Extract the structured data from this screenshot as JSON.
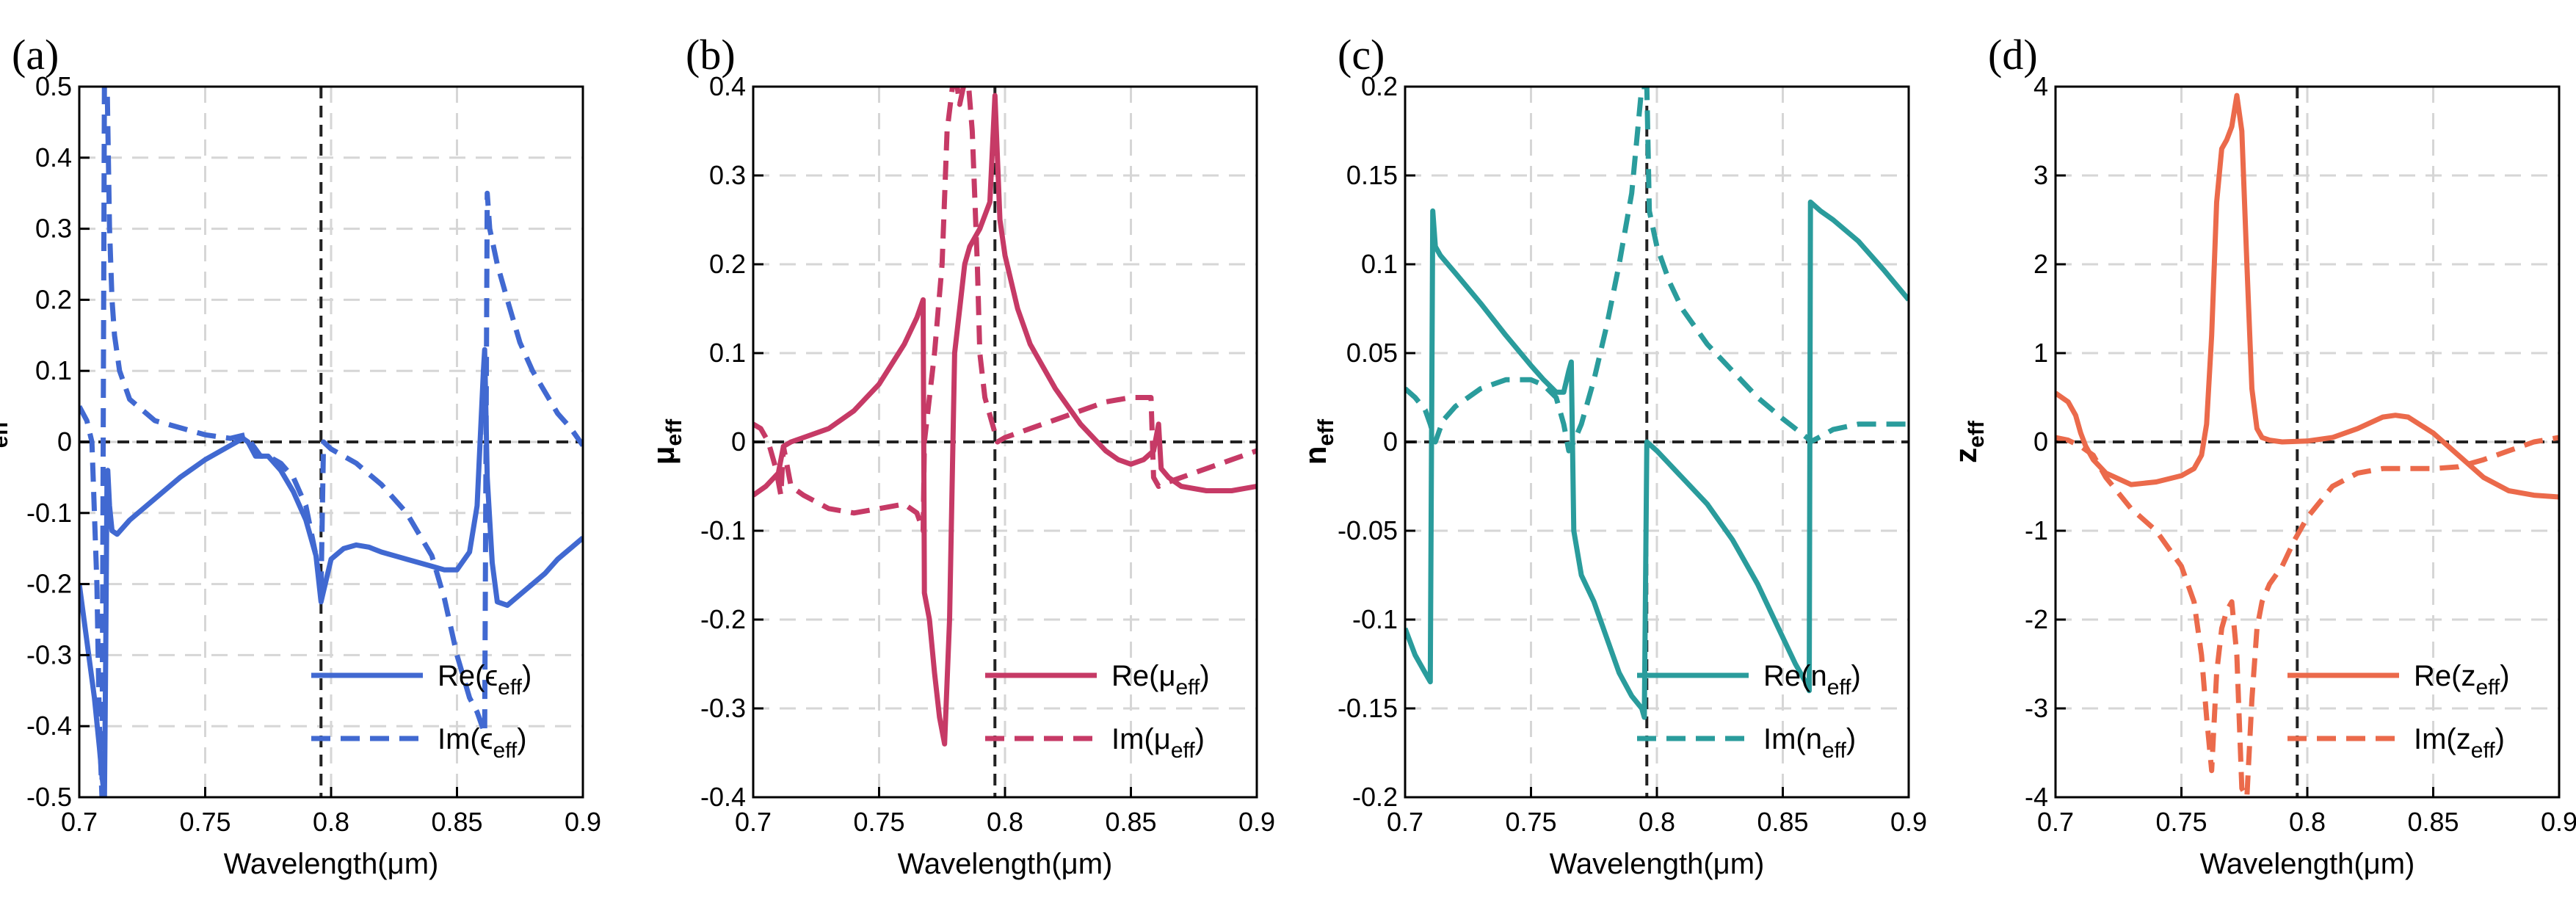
{
  "chart_data": [
    {
      "type": "line",
      "panel_label": "(a)",
      "xlabel": "Wavelength(μm)",
      "ylabel": {
        "main": "ϵ",
        "sub": "eff"
      },
      "xlim": [
        0.7,
        0.9
      ],
      "ylim": [
        -0.5,
        0.5
      ],
      "xticks": [
        0.7,
        0.75,
        0.8,
        0.85,
        0.9
      ],
      "yticks": [
        -0.5,
        -0.4,
        -0.3,
        -0.2,
        -0.1,
        0,
        0.1,
        0.2,
        0.3,
        0.4,
        0.5
      ],
      "xtick_labels": [
        "0.7",
        "0.75",
        "0.8",
        "0.85",
        "0.9"
      ],
      "ytick_labels": [
        "-0.5",
        "-0.4",
        "-0.3",
        "-0.2",
        "-0.1",
        "0",
        "0.1",
        "0.2",
        "0.3",
        "0.4",
        "0.5"
      ],
      "grid": true,
      "vline_x": 0.796,
      "hline_y": 0,
      "color": "#4169D1",
      "legend_position": "bottom-right",
      "series": [
        {
          "name_main": "Re(ϵ",
          "name_sub": "eff",
          "name_close": ")",
          "dash": false,
          "x": [
            0.7,
            0.703,
            0.706,
            0.708,
            0.709,
            0.71,
            0.7105,
            0.711,
            0.7113,
            0.712,
            0.713,
            0.715,
            0.72,
            0.73,
            0.74,
            0.75,
            0.76,
            0.765,
            0.767,
            0.77,
            0.775,
            0.78,
            0.785,
            0.79,
            0.794,
            0.796,
            0.797,
            0.8,
            0.805,
            0.81,
            0.815,
            0.82,
            0.83,
            0.84,
            0.845,
            0.85,
            0.855,
            0.858,
            0.8605,
            0.861,
            0.862,
            0.864,
            0.866,
            0.87,
            0.875,
            0.88,
            0.885,
            0.89,
            0.895,
            0.9
          ],
          "y": [
            -0.2,
            -0.28,
            -0.36,
            -0.43,
            -0.47,
            -0.5,
            -0.3,
            -0.06,
            -0.04,
            -0.09,
            -0.125,
            -0.13,
            -0.11,
            -0.08,
            -0.05,
            -0.025,
            -0.005,
            0.005,
            0.0,
            -0.02,
            -0.02,
            -0.04,
            -0.07,
            -0.11,
            -0.16,
            -0.225,
            -0.21,
            -0.165,
            -0.15,
            -0.145,
            -0.148,
            -0.155,
            -0.165,
            -0.175,
            -0.18,
            -0.18,
            -0.155,
            -0.09,
            0.1,
            0.13,
            -0.05,
            -0.17,
            -0.225,
            -0.23,
            -0.215,
            -0.2,
            -0.185,
            -0.165,
            -0.15,
            -0.135
          ]
        },
        {
          "name_main": "Im(ϵ",
          "name_sub": "eff",
          "name_close": ")",
          "dash": true,
          "x": [
            0.7,
            0.703,
            0.705,
            0.707,
            0.708,
            0.709,
            0.71,
            0.711,
            0.712,
            0.713,
            0.714,
            0.716,
            0.72,
            0.73,
            0.74,
            0.75,
            0.76,
            0.766,
            0.768,
            0.772,
            0.775,
            0.78,
            0.785,
            0.79,
            0.794,
            0.796,
            0.797,
            0.8,
            0.805,
            0.81,
            0.815,
            0.82,
            0.83,
            0.84,
            0.845,
            0.85,
            0.855,
            0.858,
            0.861,
            0.862,
            0.863,
            0.866,
            0.87,
            0.875,
            0.88,
            0.885,
            0.89,
            0.895,
            0.9
          ],
          "y": [
            0.05,
            0.03,
            0.0,
            -0.2,
            -0.4,
            -0.5,
            0.52,
            0.52,
            0.3,
            0.2,
            0.15,
            0.1,
            0.06,
            0.03,
            0.02,
            0.01,
            0.005,
            0.01,
            0.0,
            -0.02,
            -0.02,
            -0.03,
            -0.05,
            -0.09,
            -0.16,
            -0.21,
            0.0,
            -0.01,
            -0.02,
            -0.03,
            -0.045,
            -0.06,
            -0.1,
            -0.16,
            -0.22,
            -0.3,
            -0.36,
            -0.38,
            -0.41,
            0.35,
            0.3,
            0.25,
            0.2,
            0.14,
            0.1,
            0.07,
            0.04,
            0.02,
            -0.005
          ]
        }
      ]
    },
    {
      "type": "line",
      "panel_label": "(b)",
      "xlabel": "Wavelength(μm)",
      "ylabel": {
        "main": "μ",
        "sub": "eff"
      },
      "xlim": [
        0.7,
        0.9
      ],
      "ylim": [
        -0.4,
        0.4
      ],
      "xticks": [
        0.7,
        0.75,
        0.8,
        0.85,
        0.9
      ],
      "yticks": [
        -0.4,
        -0.3,
        -0.2,
        -0.1,
        0,
        0.1,
        0.2,
        0.3,
        0.4
      ],
      "xtick_labels": [
        "0.7",
        "0.75",
        "0.8",
        "0.85",
        "0.9"
      ],
      "ytick_labels": [
        "-0.4",
        "-0.3",
        "-0.2",
        "-0.1",
        "0",
        "0.1",
        "0.2",
        "0.3",
        "0.4"
      ],
      "grid": true,
      "vline_x": 0.796,
      "hline_y": 0,
      "color": "#C63A66",
      "legend_position": "bottom-right",
      "series": [
        {
          "name_main": "Re(μ",
          "name_sub": "eff",
          "name_close": ")",
          "dash": false,
          "x": [
            0.7,
            0.705,
            0.71,
            0.712,
            0.715,
            0.72,
            0.73,
            0.74,
            0.75,
            0.76,
            0.765,
            0.7675,
            0.768,
            0.77,
            0.772,
            0.774,
            0.776,
            0.778,
            0.78,
            0.782,
            0.784,
            0.786,
            0.79,
            0.794,
            0.796,
            0.798,
            0.8,
            0.805,
            0.81,
            0.82,
            0.83,
            0.84,
            0.845,
            0.85,
            0.855,
            0.859,
            0.861,
            0.862,
            0.865,
            0.87,
            0.88,
            0.89,
            0.9
          ],
          "y": [
            -0.06,
            -0.05,
            -0.035,
            -0.005,
            0.0,
            0.005,
            0.015,
            0.035,
            0.065,
            0.11,
            0.14,
            0.16,
            -0.17,
            -0.2,
            -0.26,
            -0.31,
            -0.34,
            -0.2,
            0.1,
            0.15,
            0.2,
            0.22,
            0.24,
            0.27,
            0.39,
            0.25,
            0.21,
            0.15,
            0.11,
            0.06,
            0.02,
            -0.01,
            -0.02,
            -0.025,
            -0.02,
            -0.01,
            0.02,
            -0.03,
            -0.04,
            -0.05,
            -0.055,
            -0.055,
            -0.05
          ]
        },
        {
          "name_main": "Im(μ",
          "name_sub": "eff",
          "name_close": ")",
          "dash": true,
          "x": [
            0.7,
            0.703,
            0.706,
            0.709,
            0.711,
            0.712,
            0.715,
            0.72,
            0.73,
            0.74,
            0.75,
            0.76,
            0.765,
            0.7675,
            0.768,
            0.77,
            0.772,
            0.775,
            0.777,
            0.78,
            0.782,
            0.785,
            0.787,
            0.789,
            0.79,
            0.792,
            0.795,
            0.797,
            0.8,
            0.805,
            0.81,
            0.82,
            0.83,
            0.84,
            0.85,
            0.858,
            0.859,
            0.861,
            0.865,
            0.87,
            0.88,
            0.89,
            0.9
          ],
          "y": [
            0.02,
            0.015,
            0.0,
            -0.03,
            -0.06,
            -0.005,
            -0.05,
            -0.06,
            -0.075,
            -0.08,
            -0.075,
            -0.07,
            -0.08,
            -0.1,
            0.0,
            0.05,
            0.1,
            0.2,
            0.35,
            0.42,
            0.38,
            0.42,
            0.35,
            0.2,
            0.1,
            0.05,
            0.02,
            0.0,
            0.005,
            0.01,
            0.015,
            0.025,
            0.035,
            0.045,
            0.05,
            0.05,
            -0.04,
            -0.05,
            -0.045,
            -0.04,
            -0.03,
            -0.02,
            -0.01
          ]
        }
      ]
    },
    {
      "type": "line",
      "panel_label": "(c)",
      "xlabel": "Wavelength(μm)",
      "ylabel": {
        "main": "n",
        "sub": "eff"
      },
      "xlim": [
        0.7,
        0.9
      ],
      "ylim": [
        -0.2,
        0.2
      ],
      "xticks": [
        0.7,
        0.75,
        0.8,
        0.85,
        0.9
      ],
      "yticks": [
        -0.2,
        -0.15,
        -0.1,
        -0.05,
        0,
        0.05,
        0.1,
        0.15,
        0.2
      ],
      "xtick_labels": [
        "0.7",
        "0.75",
        "0.8",
        "0.85",
        "0.9"
      ],
      "ytick_labels": [
        "-0.2",
        "-0.15",
        "-0.1",
        "-0.05",
        "0",
        "0.05",
        "0.1",
        "0.15",
        "0.2"
      ],
      "grid": true,
      "vline_x": 0.796,
      "hline_y": 0,
      "color": "#2A9C9C",
      "legend_position": "bottom-right",
      "series": [
        {
          "name_main": "Re(n",
          "name_sub": "eff",
          "name_close": ")",
          "dash": false,
          "x": [
            0.7,
            0.704,
            0.708,
            0.71,
            0.711,
            0.712,
            0.714,
            0.72,
            0.73,
            0.74,
            0.75,
            0.755,
            0.76,
            0.763,
            0.765,
            0.766,
            0.767,
            0.77,
            0.775,
            0.78,
            0.785,
            0.79,
            0.794,
            0.795,
            0.796,
            0.8,
            0.81,
            0.82,
            0.83,
            0.84,
            0.85,
            0.855,
            0.859,
            0.8605,
            0.861,
            0.865,
            0.87,
            0.88,
            0.89,
            0.9
          ],
          "y": [
            -0.105,
            -0.12,
            -0.13,
            -0.135,
            0.13,
            0.11,
            0.105,
            0.095,
            0.078,
            0.06,
            0.043,
            0.035,
            0.028,
            0.028,
            0.04,
            0.045,
            -0.05,
            -0.075,
            -0.09,
            -0.11,
            -0.13,
            -0.143,
            -0.15,
            -0.155,
            0.0,
            -0.005,
            -0.02,
            -0.035,
            -0.055,
            -0.08,
            -0.11,
            -0.125,
            -0.135,
            -0.14,
            0.135,
            0.13,
            0.125,
            0.113,
            0.097,
            0.08
          ]
        },
        {
          "name_main": "Im(n",
          "name_sub": "eff",
          "name_close": ")",
          "dash": true,
          "x": [
            0.7,
            0.704,
            0.708,
            0.71,
            0.712,
            0.715,
            0.72,
            0.73,
            0.74,
            0.75,
            0.755,
            0.76,
            0.763,
            0.765,
            0.767,
            0.77,
            0.775,
            0.78,
            0.785,
            0.79,
            0.792,
            0.794,
            0.796,
            0.797,
            0.8,
            0.805,
            0.81,
            0.82,
            0.83,
            0.84,
            0.85,
            0.86,
            0.861,
            0.865,
            0.87,
            0.88,
            0.89,
            0.9
          ],
          "y": [
            0.03,
            0.025,
            0.018,
            0.01,
            0.0,
            0.012,
            0.02,
            0.03,
            0.035,
            0.035,
            0.032,
            0.025,
            0.01,
            -0.005,
            0.0,
            0.01,
            0.035,
            0.065,
            0.1,
            0.14,
            0.17,
            0.2,
            0.2,
            0.13,
            0.11,
            0.09,
            0.075,
            0.055,
            0.04,
            0.025,
            0.013,
            0.002,
            0.0,
            0.003,
            0.007,
            0.01,
            0.01,
            0.01
          ]
        }
      ]
    },
    {
      "type": "line",
      "panel_label": "(d)",
      "xlabel": "Wavelength(μm)",
      "ylabel": {
        "main": "z",
        "sub": "eff"
      },
      "xlim": [
        0.7,
        0.9
      ],
      "ylim": [
        -4,
        4
      ],
      "xticks": [
        0.7,
        0.75,
        0.8,
        0.85,
        0.9
      ],
      "yticks": [
        -4,
        -3,
        -2,
        -1,
        0,
        1,
        2,
        3,
        4
      ],
      "xtick_labels": [
        "0.7",
        "0.75",
        "0.8",
        "0.85",
        "0.9"
      ],
      "ytick_labels": [
        "-4",
        "-3",
        "-2",
        "-1",
        "0",
        "1",
        "2",
        "3",
        "4"
      ],
      "grid": true,
      "vline_x": 0.796,
      "hline_y": 0,
      "color": "#EB6A4B",
      "legend_position": "bottom-right",
      "series": [
        {
          "name_main": "Re(z",
          "name_sub": "eff",
          "name_close": ")",
          "dash": false,
          "x": [
            0.7,
            0.705,
            0.708,
            0.71,
            0.712,
            0.715,
            0.72,
            0.73,
            0.74,
            0.75,
            0.755,
            0.758,
            0.76,
            0.762,
            0.764,
            0.766,
            0.768,
            0.77,
            0.772,
            0.774,
            0.776,
            0.778,
            0.78,
            0.782,
            0.785,
            0.79,
            0.8,
            0.81,
            0.82,
            0.83,
            0.835,
            0.84,
            0.85,
            0.86,
            0.87,
            0.88,
            0.89,
            0.9
          ],
          "y": [
            0.55,
            0.45,
            0.3,
            0.1,
            -0.05,
            -0.2,
            -0.35,
            -0.48,
            -0.45,
            -0.38,
            -0.3,
            -0.15,
            0.2,
            1.2,
            2.7,
            3.3,
            3.4,
            3.55,
            3.9,
            3.5,
            2.0,
            0.6,
            0.15,
            0.05,
            0.02,
            0.0,
            0.01,
            0.05,
            0.15,
            0.28,
            0.3,
            0.28,
            0.1,
            -0.15,
            -0.4,
            -0.55,
            -0.6,
            -0.62
          ]
        },
        {
          "name_main": "Im(z",
          "name_sub": "eff",
          "name_close": ")",
          "dash": true,
          "x": [
            0.7,
            0.705,
            0.71,
            0.715,
            0.72,
            0.73,
            0.74,
            0.75,
            0.755,
            0.758,
            0.76,
            0.762,
            0.764,
            0.766,
            0.768,
            0.77,
            0.772,
            0.774,
            0.776,
            0.778,
            0.78,
            0.782,
            0.785,
            0.79,
            0.795,
            0.8,
            0.81,
            0.82,
            0.83,
            0.84,
            0.85,
            0.86,
            0.87,
            0.88,
            0.89,
            0.9
          ],
          "y": [
            0.05,
            0.02,
            -0.05,
            -0.15,
            -0.4,
            -0.75,
            -1.0,
            -1.4,
            -1.8,
            -2.4,
            -3.1,
            -3.7,
            -2.6,
            -2.1,
            -1.9,
            -1.8,
            -2.4,
            -3.9,
            -4.0,
            -2.9,
            -2.1,
            -1.8,
            -1.6,
            -1.4,
            -1.1,
            -0.85,
            -0.5,
            -0.35,
            -0.3,
            -0.3,
            -0.3,
            -0.28,
            -0.2,
            -0.1,
            0.0,
            0.05
          ]
        }
      ]
    }
  ]
}
